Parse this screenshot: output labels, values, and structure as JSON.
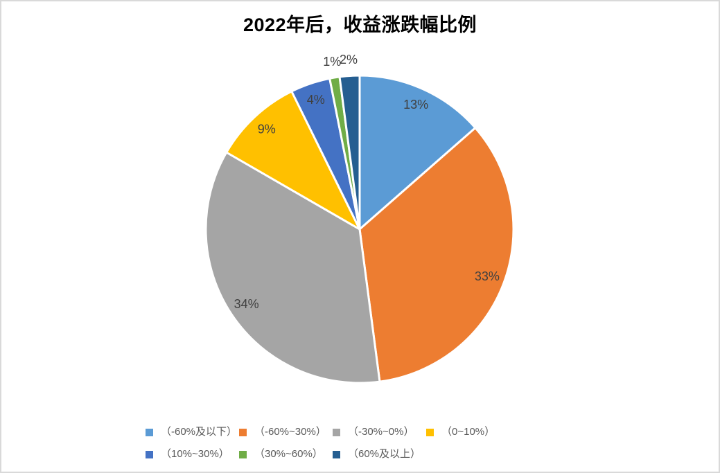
{
  "chart_data": {
    "type": "pie",
    "title": "2022年后，收益涨跌幅比例",
    "legend_position": "bottom",
    "grid": false,
    "series": [
      {
        "legend_label": "（-60%及以下）",
        "value": 13,
        "value_label": "13%",
        "color": "#5B9BD5",
        "label_placement": "inside"
      },
      {
        "legend_label": "（-60%~30%）",
        "value": 33,
        "value_label": "33%",
        "color": "#ED7D31",
        "label_placement": "inside"
      },
      {
        "legend_label": "（-30%~0%）",
        "value": 34,
        "value_label": "34%",
        "color": "#A5A5A5",
        "label_placement": "inside"
      },
      {
        "legend_label": "（0~10%）",
        "value": 9,
        "value_label": "9%",
        "color": "#FFC000",
        "label_placement": "inside"
      },
      {
        "legend_label": "（10%~30%）",
        "value": 4,
        "value_label": "4%",
        "color": "#4472C4",
        "label_placement": "inside"
      },
      {
        "legend_label": "（30%~60%）",
        "value": 1,
        "value_label": "1%",
        "color": "#70AD47",
        "label_placement": "outside"
      },
      {
        "legend_label": "（60%及以上）",
        "value": 2,
        "value_label": "2%",
        "color": "#255E91",
        "label_placement": "outside"
      }
    ]
  }
}
